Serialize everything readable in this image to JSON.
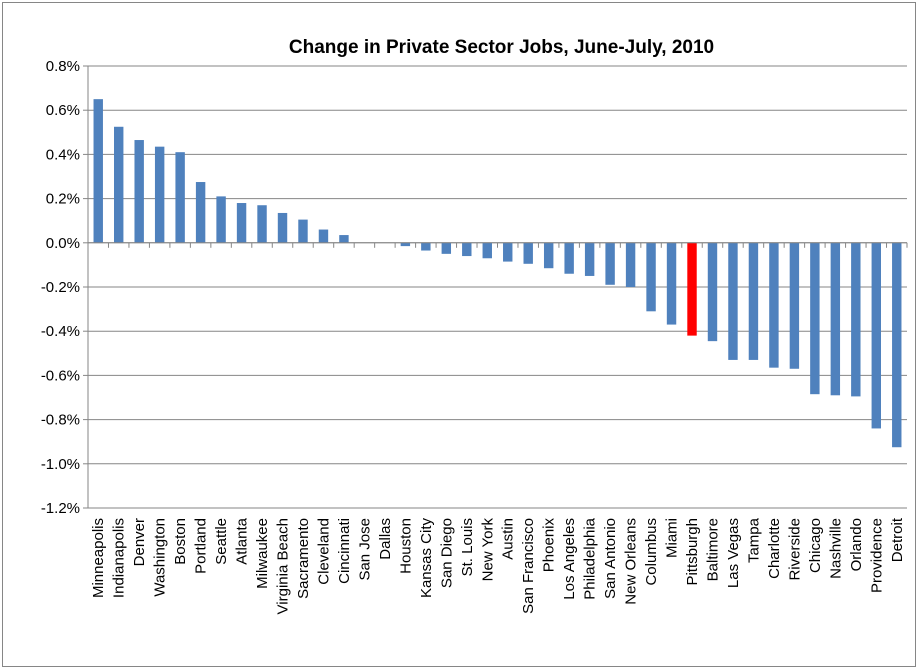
{
  "chart_data": {
    "type": "bar",
    "title": "Change in Private Sector Jobs, June-July, 2010",
    "xlabel": "",
    "ylabel": "",
    "ylim": [
      -1.2,
      0.8
    ],
    "y_ticks": [
      0.8,
      0.6,
      0.4,
      0.2,
      0.0,
      -0.2,
      -0.4,
      -0.6,
      -0.8,
      -1.0,
      -1.2
    ],
    "y_tick_labels": [
      "0.8%",
      "0.6%",
      "0.4%",
      "0.2%",
      "0.0%",
      "-0.2%",
      "-0.4%",
      "-0.6%",
      "-0.8%",
      "-1.0%",
      "-1.2%"
    ],
    "grid": true,
    "legend": "none",
    "bar_color": "#4F81BD",
    "highlight_color": "#FF0000",
    "highlight_category": "Pittsburgh",
    "categories": [
      "Minneapolis",
      "Indianapolis",
      "Denver",
      "Washington",
      "Boston",
      "Portland",
      "Seattle",
      "Atlanta",
      "Milwaukee",
      "Virginia Beach",
      "Sacramento",
      "Cleveland",
      "Cincinnati",
      "San Jose",
      "Dallas",
      "Houston",
      "Kansas City",
      "San Diego",
      "St. Louis",
      "New York",
      "Austin",
      "San Francisco",
      "Phoenix",
      "Los Angeles",
      "Philadelphia",
      "San Antonio",
      "New Orleans",
      "Columbus",
      "Miami",
      "Pittsburgh",
      "Baltimore",
      "Las Vegas",
      "Tampa",
      "Charlotte",
      "Riverside",
      "Chicago",
      "Nashville",
      "Orlando",
      "Providence",
      "Detroit"
    ],
    "values": [
      0.65,
      0.525,
      0.465,
      0.435,
      0.41,
      0.275,
      0.21,
      0.18,
      0.17,
      0.135,
      0.105,
      0.06,
      0.035,
      0.0,
      0.0,
      -0.015,
      -0.035,
      -0.05,
      -0.06,
      -0.07,
      -0.085,
      -0.095,
      -0.115,
      -0.14,
      -0.15,
      -0.19,
      -0.2,
      -0.31,
      -0.37,
      -0.42,
      -0.445,
      -0.53,
      -0.53,
      -0.565,
      -0.57,
      -0.685,
      -0.69,
      -0.695,
      -0.84,
      -0.925
    ]
  }
}
